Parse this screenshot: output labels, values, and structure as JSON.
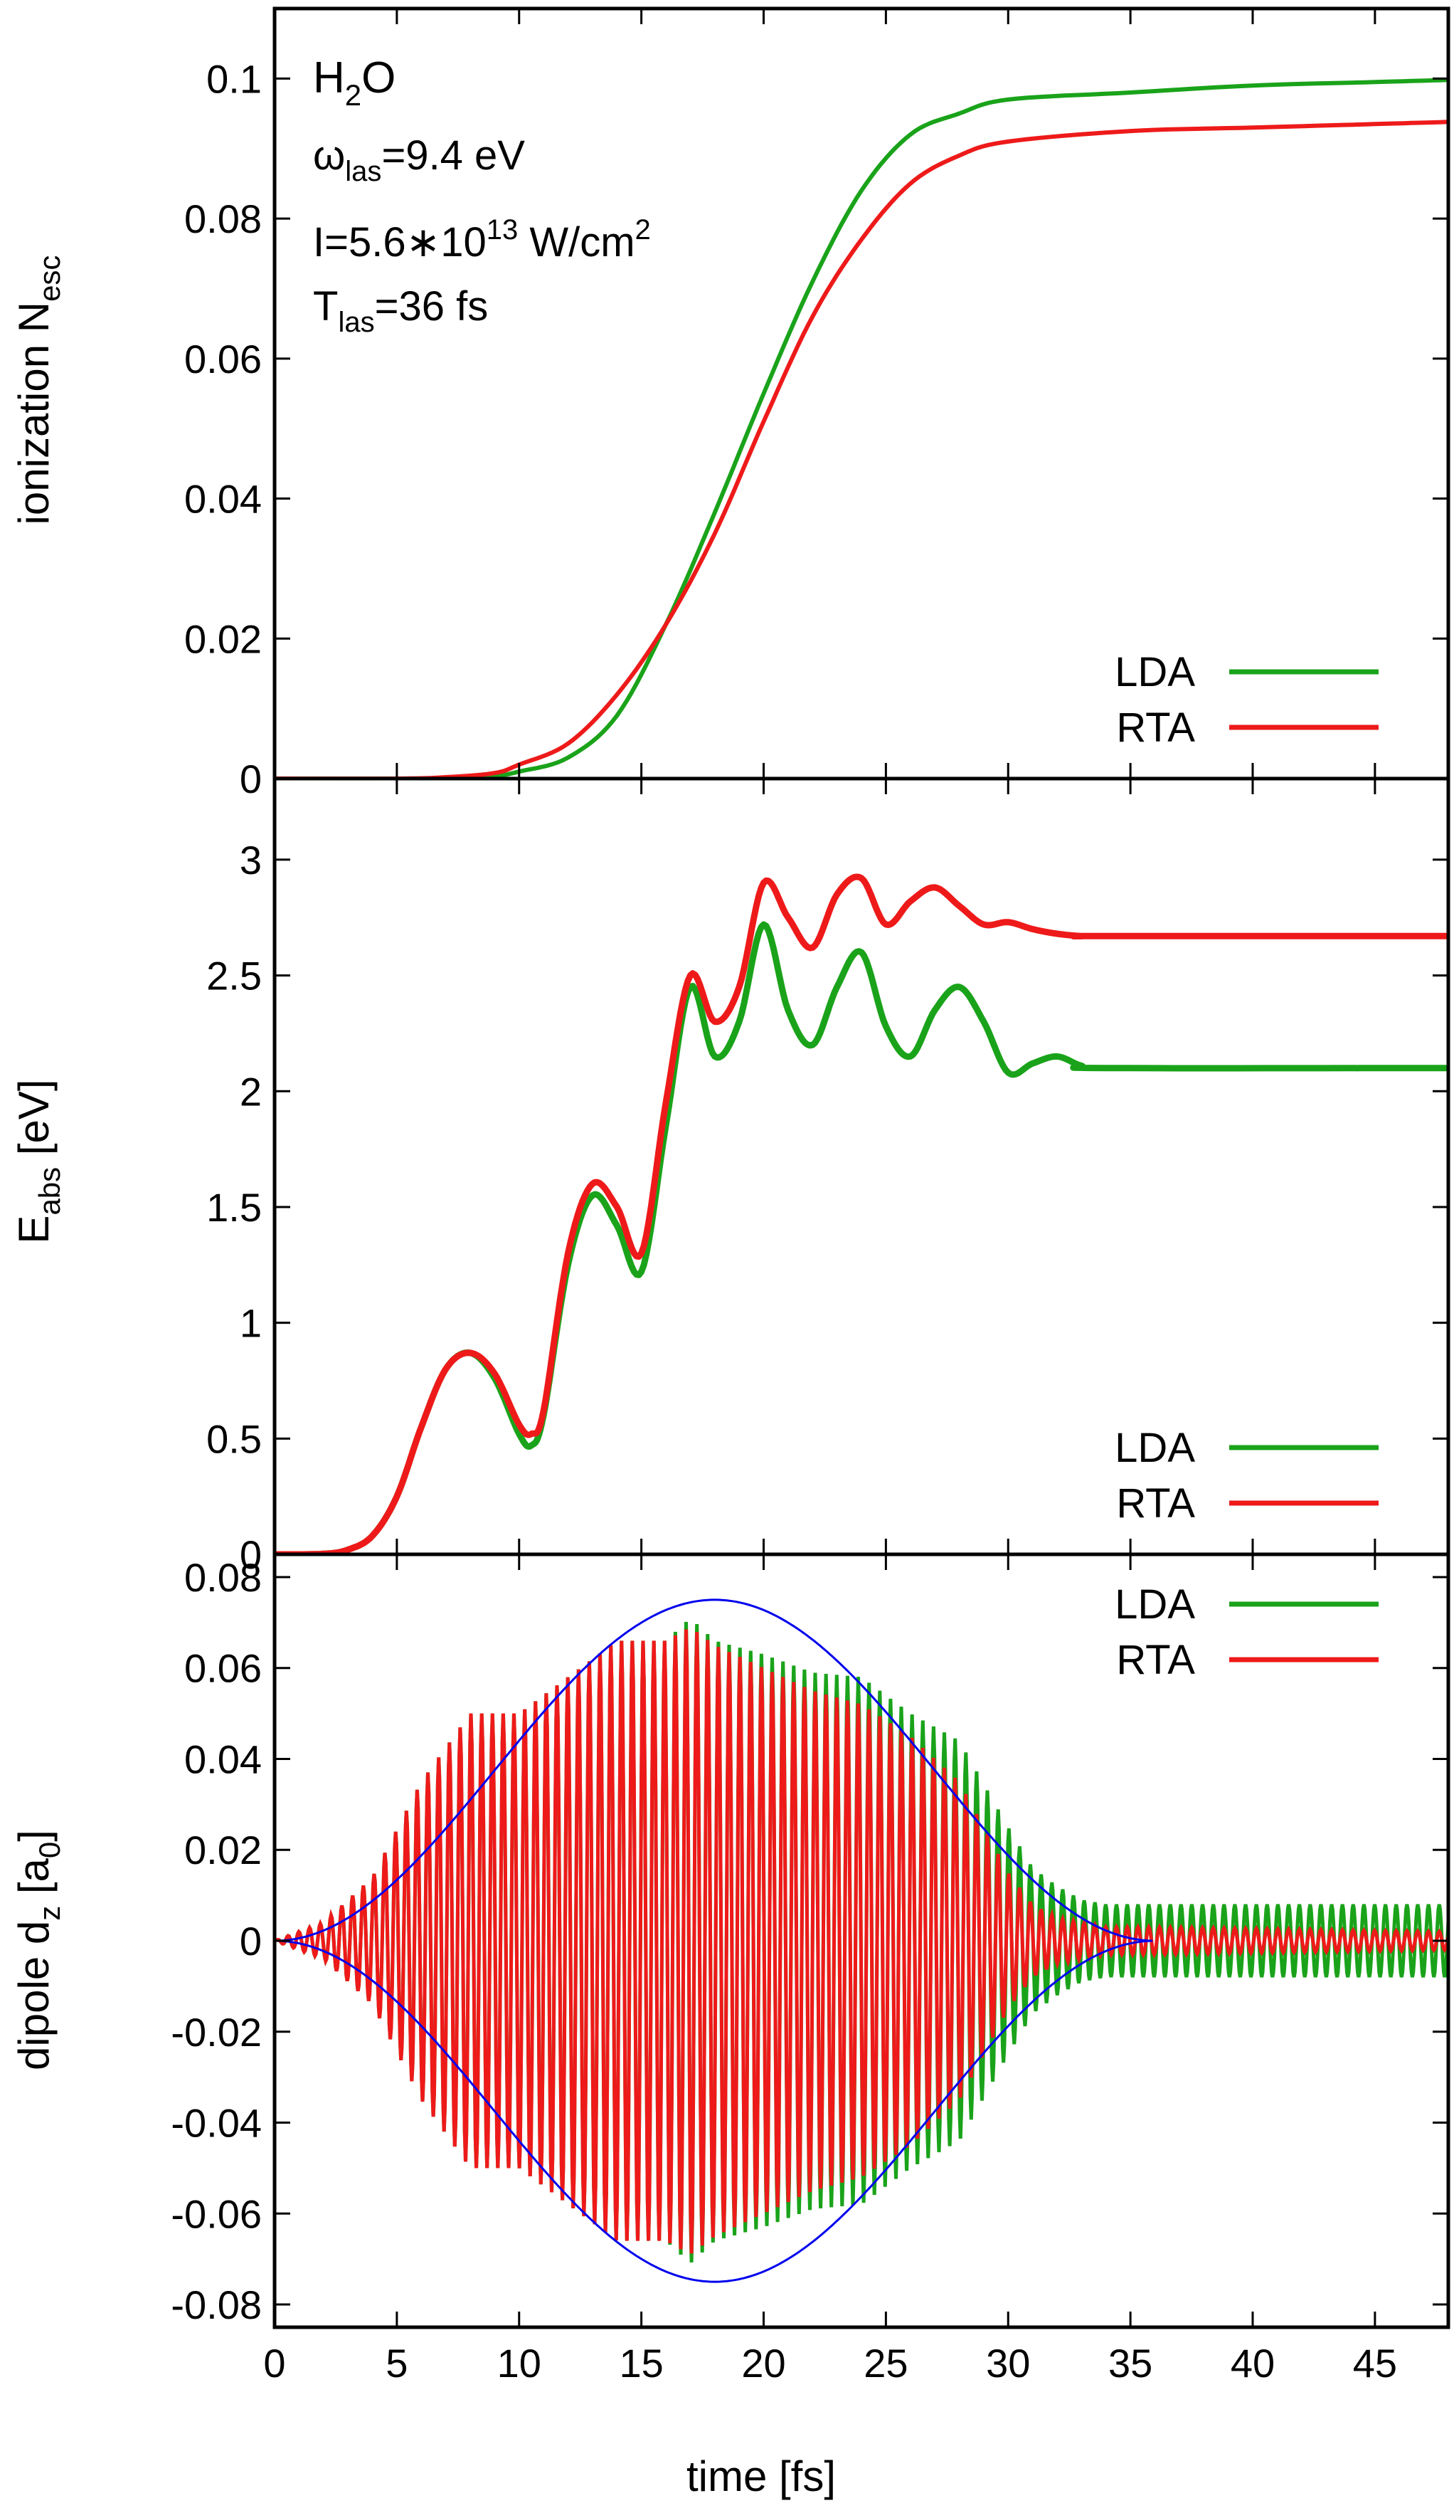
{
  "colors": {
    "LDA": "#1aa31a",
    "RTA": "#ee1a1a",
    "envelope": "#0000ee",
    "axis": "#000000"
  },
  "x_axis": {
    "label": "time [fs]",
    "ticks": [
      0,
      5,
      10,
      15,
      20,
      25,
      30,
      35,
      40,
      45
    ],
    "tick_labels": [
      "0",
      "5",
      "10",
      "15",
      "20",
      "25",
      "30",
      "35",
      "40",
      "45"
    ],
    "range": [
      0,
      48
    ]
  },
  "chart_data": [
    {
      "type": "line",
      "ylabel": {
        "main": "ionization N",
        "sub": "esc"
      },
      "ylim": [
        0,
        0.11
      ],
      "yticks": [
        0,
        0.02,
        0.04,
        0.06,
        0.08,
        0.1
      ],
      "ytick_labels": [
        "0",
        "0.02",
        "0.04",
        "0.06",
        "0.08",
        "0.1"
      ],
      "annotation": {
        "molecule": {
          "a": "H",
          "sub": "2",
          "b": "O"
        },
        "freq": {
          "sym": "ω",
          "sub": "las",
          "val": "=9.4 eV"
        },
        "intensity": {
          "pre": "I=5.6∗10",
          "sup": "13",
          "mid": " W/cm",
          "sup2": "2"
        },
        "duration": {
          "sym": "T",
          "sub": "las",
          "val": "=36 fs"
        }
      },
      "legend": {
        "placement": "bottom-right",
        "entries": [
          "LDA",
          "RTA"
        ]
      },
      "series": [
        {
          "name": "LDA",
          "x": [
            0,
            5,
            7,
            9,
            10,
            12,
            14,
            16,
            18,
            20,
            22,
            24,
            26,
            28,
            30,
            35,
            40,
            45,
            48
          ],
          "values": [
            0,
            0,
            0.0001,
            0.0004,
            0.001,
            0.003,
            0.009,
            0.022,
            0.038,
            0.055,
            0.071,
            0.084,
            0.092,
            0.095,
            0.097,
            0.098,
            0.099,
            0.0995,
            0.0998
          ]
        },
        {
          "name": "RTA",
          "x": [
            0,
            5,
            7,
            9,
            10,
            12,
            14,
            16,
            18,
            20,
            22,
            24,
            26,
            28,
            30,
            35,
            40,
            45,
            48
          ],
          "values": [
            0,
            0,
            0.0002,
            0.0008,
            0.002,
            0.005,
            0.012,
            0.022,
            0.035,
            0.051,
            0.066,
            0.077,
            0.085,
            0.089,
            0.091,
            0.0925,
            0.093,
            0.0935,
            0.0938
          ]
        }
      ]
    },
    {
      "type": "line",
      "ylabel": {
        "main": "E",
        "sub": "abs",
        "after": " [eV]"
      },
      "ylim": [
        0,
        3.35
      ],
      "yticks": [
        0,
        0.5,
        1,
        1.5,
        2,
        2.5,
        3
      ],
      "ytick_labels": [
        "0",
        "0.5",
        "1",
        "1.5",
        "2",
        "2.5",
        "3"
      ],
      "legend": {
        "placement": "bottom-right",
        "entries": [
          "LDA",
          "RTA"
        ]
      },
      "series": [
        {
          "name": "LDA",
          "x": [
            0,
            2,
            3,
            4,
            5,
            6,
            7,
            8,
            9,
            10,
            10.5,
            11,
            12,
            13,
            14,
            15,
            16,
            17,
            18,
            19,
            20,
            21,
            22,
            23,
            24,
            25,
            26,
            27,
            28,
            29,
            30,
            31,
            32,
            33,
            34,
            48
          ],
          "values": [
            0,
            0.002,
            0.02,
            0.08,
            0.25,
            0.55,
            0.8,
            0.87,
            0.76,
            0.52,
            0.47,
            0.6,
            1.25,
            1.55,
            1.42,
            1.22,
            1.85,
            2.45,
            2.15,
            2.3,
            2.72,
            2.35,
            2.2,
            2.45,
            2.6,
            2.28,
            2.15,
            2.35,
            2.45,
            2.3,
            2.08,
            2.12,
            2.15,
            2.11,
            2.1,
            2.1
          ]
        },
        {
          "name": "RTA",
          "x": [
            0,
            2,
            3,
            4,
            5,
            6,
            7,
            8,
            9,
            10,
            10.5,
            11,
            12,
            13,
            14,
            15,
            16,
            17,
            18,
            19,
            20,
            21,
            22,
            23,
            24,
            25,
            26,
            27,
            28,
            29,
            30,
            31,
            32,
            33,
            34,
            48
          ],
          "values": [
            0,
            0.002,
            0.02,
            0.08,
            0.25,
            0.55,
            0.8,
            0.87,
            0.78,
            0.56,
            0.52,
            0.62,
            1.3,
            1.6,
            1.5,
            1.3,
            1.95,
            2.5,
            2.3,
            2.45,
            2.9,
            2.75,
            2.62,
            2.85,
            2.92,
            2.72,
            2.82,
            2.88,
            2.8,
            2.72,
            2.73,
            2.7,
            2.68,
            2.67,
            2.67,
            2.67
          ]
        }
      ]
    },
    {
      "type": "line",
      "ylabel": {
        "main": "dipole d",
        "sub": "z",
        "after": " [a",
        "sub2": "0",
        "close": "]"
      },
      "ylim": [
        -0.085,
        0.085
      ],
      "yticks": [
        -0.08,
        -0.06,
        -0.04,
        -0.02,
        0,
        0.02,
        0.04,
        0.06,
        0.08
      ],
      "ytick_labels": [
        "-0.08",
        "-0.06",
        "-0.04",
        "-0.02",
        "0",
        "0.02",
        "0.04",
        "0.06",
        "0.08"
      ],
      "legend": {
        "placement": "top-right",
        "entries": [
          "LDA",
          "RTA"
        ]
      },
      "period_fs": 0.44,
      "envelope": {
        "peak_time": 18,
        "duration": 36,
        "peak": 0.075
      },
      "series": [
        {
          "name": "LDA",
          "amp_t": [
            0,
            2,
            4,
            6,
            8,
            10,
            12,
            14,
            16,
            17,
            18,
            20,
            22,
            24,
            26,
            28,
            30,
            31,
            32,
            33,
            34,
            35,
            36,
            48
          ],
          "amp_v": [
            0,
            0.004,
            0.014,
            0.035,
            0.05,
            0.05,
            0.058,
            0.066,
            0.066,
            0.071,
            0.066,
            0.063,
            0.059,
            0.058,
            0.05,
            0.044,
            0.025,
            0.016,
            0.012,
            0.009,
            0.008,
            0.008,
            0.008,
            0.008
          ]
        },
        {
          "name": "RTA",
          "amp_t": [
            0,
            2,
            4,
            6,
            8,
            10,
            12,
            14,
            16,
            17,
            18,
            20,
            22,
            24,
            26,
            28,
            30,
            31,
            32,
            33,
            34,
            35,
            36,
            48
          ],
          "amp_v": [
            0,
            0.004,
            0.014,
            0.035,
            0.05,
            0.05,
            0.058,
            0.066,
            0.066,
            0.069,
            0.065,
            0.06,
            0.055,
            0.052,
            0.045,
            0.035,
            0.015,
            0.008,
            0.005,
            0.004,
            0.003,
            0.003,
            0.003,
            0.002
          ]
        }
      ]
    }
  ]
}
